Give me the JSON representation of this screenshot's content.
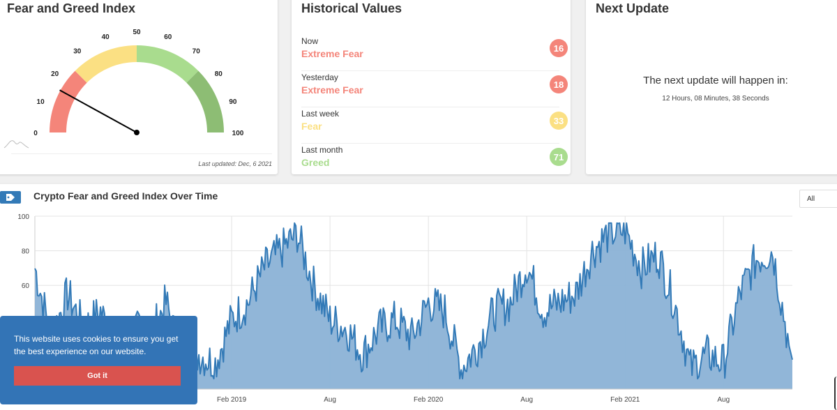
{
  "gauge_card": {
    "title": "Fear and Greed Index",
    "value": 16,
    "tick_labels": [
      "0",
      "10",
      "20",
      "30",
      "40",
      "50",
      "60",
      "70",
      "80",
      "90",
      "100"
    ],
    "last_updated": "Last updated: Dec, 6 2021",
    "colors": {
      "extreme_fear": "#f4857a",
      "fear": "#fbe083",
      "greed": "#a9dc8e",
      "extreme_greed": "#8dbd74",
      "needle": "#000000"
    }
  },
  "historical": {
    "title": "Historical Values",
    "rows": [
      {
        "label": "Now",
        "value": "Extreme Fear",
        "score": "16",
        "color": "#f4857a"
      },
      {
        "label": "Yesterday",
        "value": "Extreme Fear",
        "score": "18",
        "color": "#f4857a"
      },
      {
        "label": "Last week",
        "value": "Fear",
        "score": "33",
        "color": "#fbe083"
      },
      {
        "label": "Last month",
        "value": "Greed",
        "score": "71",
        "color": "#a9dc8e"
      }
    ]
  },
  "next_update": {
    "title": "Next Update",
    "heading": "The next update will happen in:",
    "countdown": "12 Hours, 08 Minutes, 38 Seconds"
  },
  "chart_section": {
    "tag_icon": "tag-icon",
    "title": "Crypto Fear and Greed Index Over Time",
    "range_selected": "All"
  },
  "chart_data": {
    "type": "area",
    "title": "Crypto Fear and Greed Index Over Time",
    "ylim": [
      0,
      100
    ],
    "y_ticks": [
      60,
      80,
      100
    ],
    "x_tick_labels": [
      "Feb 2019",
      "Aug",
      "Feb 2020",
      "Aug",
      "Feb 2021",
      "Aug"
    ],
    "grid": true,
    "colors": {
      "line": "#337ab7",
      "fill": "#8bb2d6"
    },
    "series": [
      {
        "x": [
          "2018-02",
          "2018-03",
          "2018-04",
          "2018-05",
          "2018-06",
          "2018-07",
          "2018-08",
          "2018-09",
          "2018-10",
          "2018-11",
          "2018-12",
          "2019-01",
          "2019-02",
          "2019-03",
          "2019-04",
          "2019-05",
          "2019-06",
          "2019-07",
          "2019-08",
          "2019-09",
          "2019-10",
          "2019-11",
          "2019-12",
          "2020-01",
          "2020-02",
          "2020-03",
          "2020-04",
          "2020-05",
          "2020-06",
          "2020-07",
          "2020-08",
          "2020-09",
          "2020-10",
          "2020-11",
          "2020-12",
          "2021-01",
          "2021-02",
          "2021-03",
          "2021-04",
          "2021-05",
          "2021-06",
          "2021-07",
          "2021-08",
          "2021-09",
          "2021-10",
          "2021-11",
          "2021-12"
        ],
        "values": [
          70,
          30,
          55,
          35,
          45,
          25,
          35,
          30,
          50,
          15,
          20,
          15,
          40,
          50,
          70,
          80,
          90,
          60,
          40,
          35,
          20,
          35,
          40,
          30,
          50,
          45,
          12,
          25,
          45,
          50,
          72,
          45,
          50,
          55,
          80,
          90,
          92,
          70,
          78,
          50,
          12,
          20,
          15,
          55,
          75,
          80,
          25
        ]
      }
    ]
  },
  "cookie_banner": {
    "message": "This website uses cookies to ensure you get the best experience on our website.",
    "button_label": "Got it"
  }
}
